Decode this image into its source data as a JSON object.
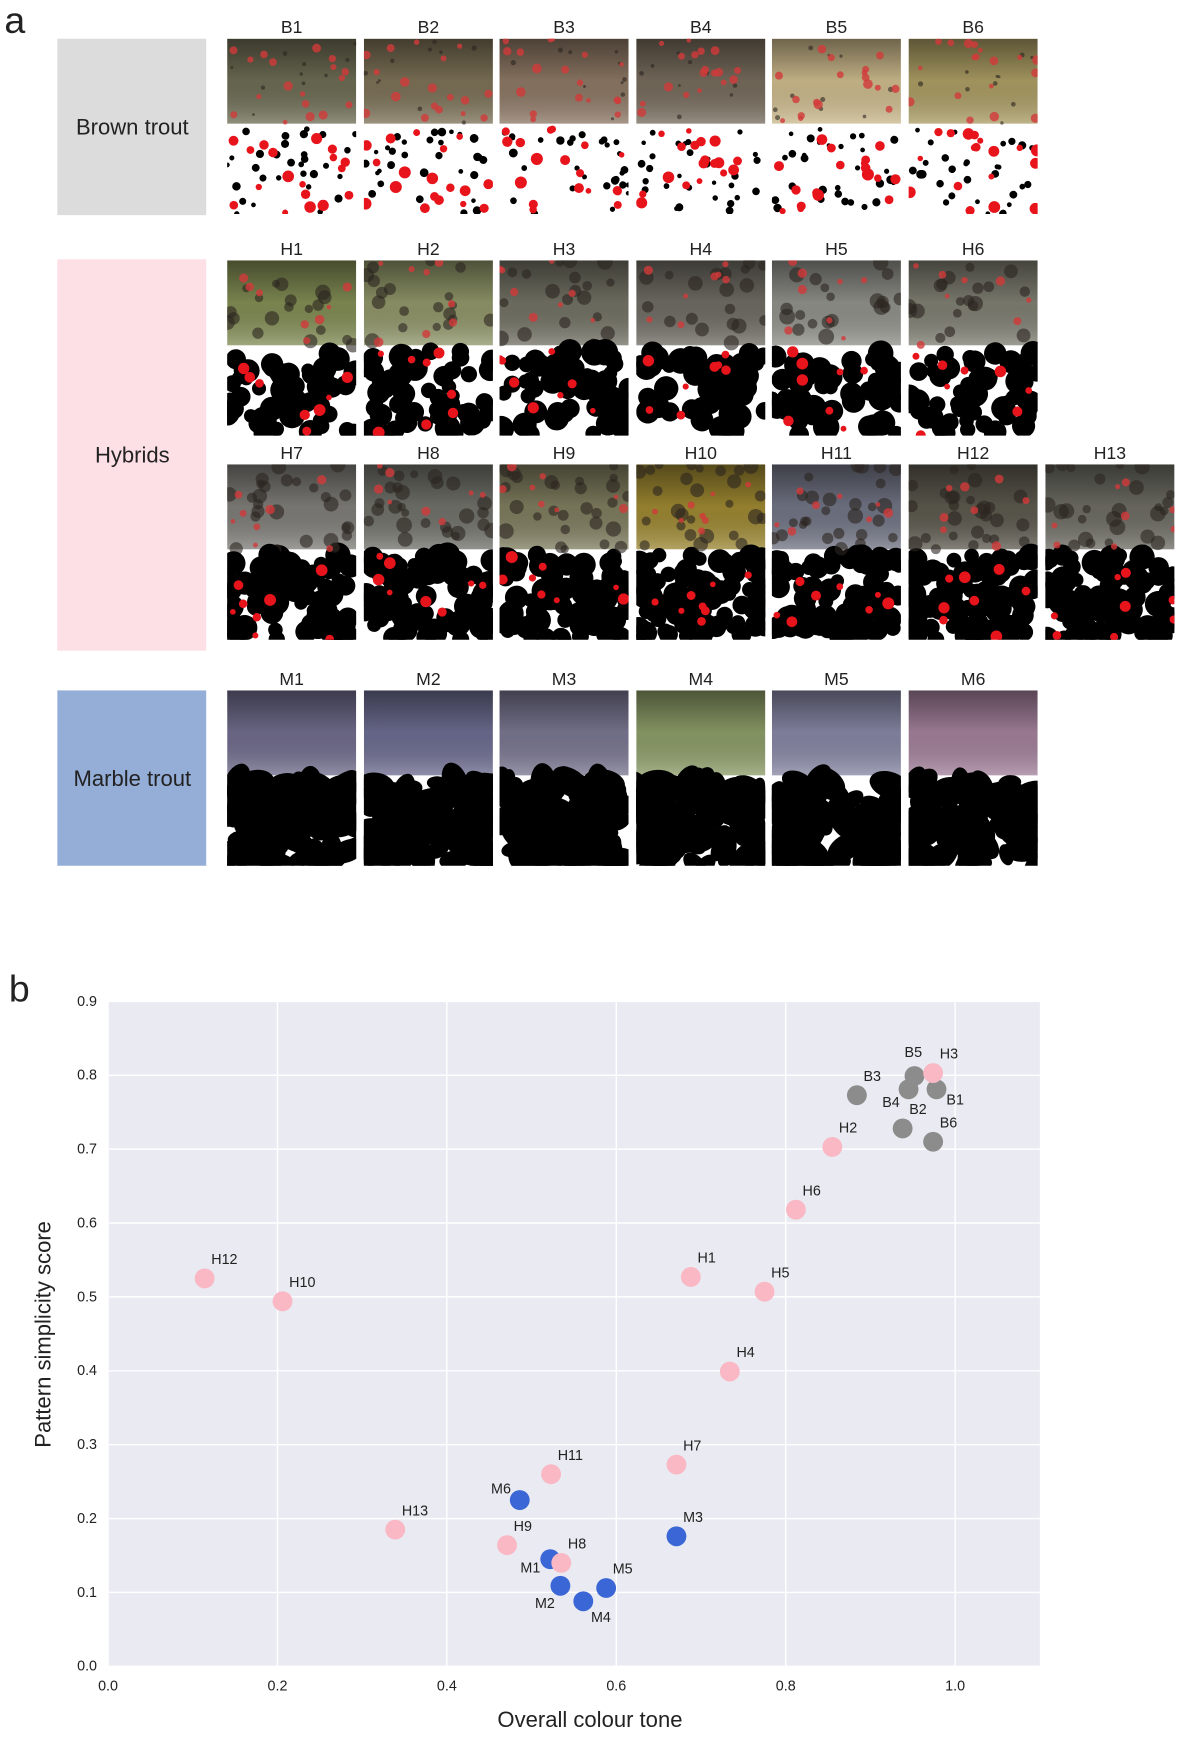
{
  "panel_a": {
    "label": "a",
    "groups": [
      {
        "name": "Brown trout",
        "color": "#dcdcdc",
        "rows": [
          [
            "B1",
            "B2",
            "B3",
            "B4",
            "B5",
            "B6"
          ]
        ]
      },
      {
        "name": "Hybrids",
        "color": "#fde0e6",
        "rows": [
          [
            "H1",
            "H2",
            "H3",
            "H4",
            "H5",
            "H6"
          ],
          [
            "H7",
            "H8",
            "H9",
            "H10",
            "H11",
            "H12",
            "H13"
          ]
        ]
      },
      {
        "name": "Marble trout",
        "color": "#94aed8",
        "rows": [
          [
            "M1",
            "M2",
            "M3",
            "M4",
            "M5",
            "M6"
          ]
        ]
      }
    ]
  },
  "chart_data": {
    "type": "scatter",
    "panel_label": "b",
    "xlabel": "Overall colour tone",
    "ylabel": "Pattern simplicity score",
    "xlim": [
      0,
      1.1
    ],
    "ylim": [
      0,
      0.9
    ],
    "xticks": [
      {
        "value": 0,
        "label": "0.0"
      },
      0.2,
      0.4,
      0.6,
      0.8,
      {
        "value": 1,
        "label": "1.0"
      }
    ],
    "yticks": [
      {
        "value": 0,
        "label": "0.0"
      },
      0.1,
      0.2,
      0.3,
      0.4,
      0.5,
      0.6,
      0.7,
      0.8,
      0.9
    ],
    "grid": true,
    "background": "#eaeaf2",
    "series": [
      {
        "color": "#8c8c8c",
        "point_labels": [
          "B1",
          "B2",
          "B3",
          "B4",
          "B5",
          "B6"
        ],
        "x": [
          0.978,
          0.938,
          0.884,
          0.945,
          0.952,
          0.974
        ],
        "values": [
          0.781,
          0.728,
          0.773,
          0.781,
          0.799,
          0.71
        ]
      },
      {
        "color": "#3a66d6",
        "point_labels": [
          "M1",
          "M2",
          "M3",
          "M4",
          "M5",
          "M6"
        ],
        "x": [
          0.522,
          0.534,
          0.671,
          0.561,
          0.588,
          0.486
        ],
        "values": [
          0.145,
          0.109,
          0.176,
          0.088,
          0.106,
          0.225
        ]
      },
      {
        "color": "#f9b8c4",
        "point_labels": [
          "H1",
          "H2",
          "H3",
          "H4",
          "H5",
          "H6",
          "H7",
          "H8",
          "H9",
          "H10",
          "H11",
          "H12",
          "H13"
        ],
        "x": [
          0.688,
          0.855,
          0.974,
          0.734,
          0.775,
          0.812,
          0.671,
          0.535,
          0.471,
          0.206,
          0.523,
          0.114,
          0.339
        ],
        "values": [
          0.527,
          0.703,
          0.803,
          0.399,
          0.507,
          0.618,
          0.273,
          0.14,
          0.164,
          0.494,
          0.26,
          0.525,
          0.185
        ]
      }
    ]
  }
}
